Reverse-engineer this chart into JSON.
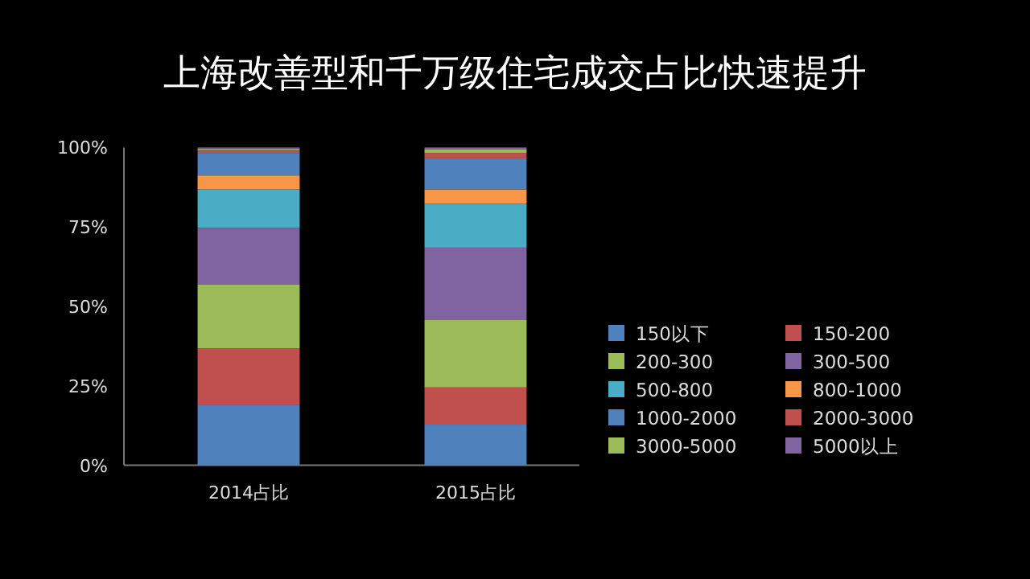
{
  "chart_data": {
    "type": "bar",
    "title": "上海改善型和千万级住宅成交占比快速提升",
    "categories": [
      "2014占比",
      "2015占比"
    ],
    "stacked": true,
    "legend": "right",
    "grid": false,
    "ylim": [
      0,
      100
    ],
    "yticks": [
      {
        "value": 0,
        "label": "0%"
      },
      {
        "value": 25,
        "label": "25%"
      },
      {
        "value": 50,
        "label": "50%"
      },
      {
        "value": 75,
        "label": "75%"
      },
      {
        "value": 100,
        "label": "100%"
      }
    ],
    "series": [
      {
        "name": "150以下",
        "color": "#4f81bd",
        "values": [
          19.1,
          12.8
        ]
      },
      {
        "name": "150-200",
        "color": "#c0504d",
        "values": [
          17.7,
          11.7
        ]
      },
      {
        "name": "200-300",
        "color": "#9bbb59",
        "values": [
          20.2,
          21.2
        ]
      },
      {
        "name": "300-500",
        "color": "#8064a2",
        "values": [
          17.7,
          22.8
        ]
      },
      {
        "name": "500-800",
        "color": "#4bacc6",
        "values": [
          12.1,
          13.8
        ]
      },
      {
        "name": "800-1000",
        "color": "#f79646",
        "values": [
          4.4,
          4.5
        ]
      },
      {
        "name": "1000-2000",
        "color": "#4f81bd",
        "values": [
          7.1,
          9.8
        ]
      },
      {
        "name": "2000-3000",
        "color": "#c0504d",
        "values": [
          0.9,
          1.7
        ]
      },
      {
        "name": "3000-5000",
        "color": "#9bbb59",
        "values": [
          0.5,
          1.2
        ]
      },
      {
        "name": "5000以上",
        "color": "#8064a2",
        "values": [
          0.3,
          0.5
        ]
      }
    ]
  }
}
